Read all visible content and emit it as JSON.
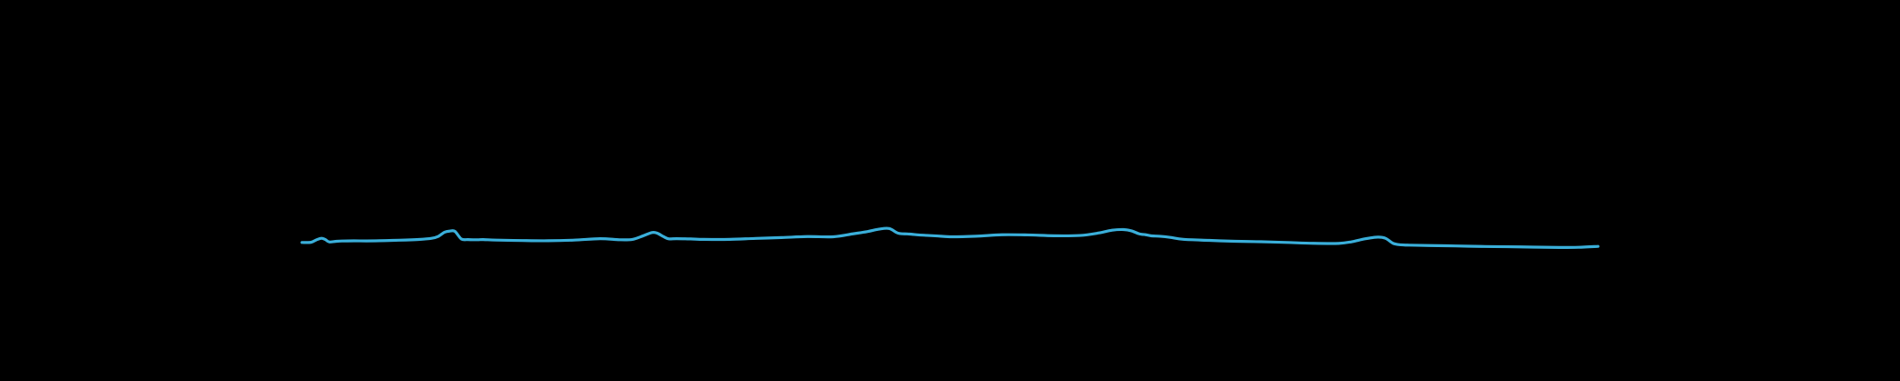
{
  "colors": {
    "background": "#000000",
    "trace": "#3AAFDA",
    "lead_in": "#5E8FA3"
  },
  "chart_data": {
    "type": "line",
    "title": "",
    "xlabel": "",
    "ylabel": "",
    "grid": false,
    "legend": "none",
    "xlim": [
      0,
      100
    ],
    "ylim": [
      0,
      100
    ],
    "series": [
      {
        "x": [
          0,
          0.7,
          1.1,
          1.5,
          1.8,
          2.1,
          2.6,
          3.1,
          4.0,
          5.0,
          6.0,
          7.0,
          8.0,
          9.0,
          10.0,
          10.5,
          11.0,
          11.4,
          11.8,
          12.3,
          12.8,
          13.2,
          13.6,
          14.0,
          15.0,
          17.0,
          19.0,
          21.0,
          23.0,
          24.5,
          25.5,
          26.3,
          27.0,
          27.4,
          27.9,
          28.3,
          28.9,
          30.0,
          31.0,
          33.0,
          35.0,
          37.0,
          39.0,
          41.0,
          42.5,
          43.6,
          44.5,
          45.3,
          46.0,
          46.7,
          47.1,
          47.6,
          48.2,
          49.0,
          50.0,
          52.0,
          54.0,
          56.0,
          58.0,
          60.0,
          61.5,
          62.5,
          63.4,
          64.0,
          64.6,
          65.1,
          65.5,
          66.2,
          67.0,
          68.0,
          70.0,
          72.0,
          74.0,
          76.0,
          78.0,
          80.0,
          81.0,
          82.0,
          83.0,
          83.6,
          84.2,
          84.8,
          85.3,
          85.9,
          87.0,
          89.0,
          91.0,
          93.0,
          95.0,
          97.0,
          98.5,
          100.0
        ],
        "y": [
          17.0,
          17.2,
          19.8,
          21.6,
          20.2,
          17.6,
          18.2,
          18.6,
          18.8,
          18.7,
          18.9,
          19.3,
          19.7,
          20.3,
          21.6,
          23.6,
          28.3,
          29.5,
          29.2,
          20.8,
          20.2,
          20.0,
          20.0,
          20.2,
          19.6,
          19.1,
          18.9,
          19.6,
          21.2,
          20.0,
          20.4,
          24.2,
          27.9,
          27.3,
          23.4,
          21.0,
          21.2,
          20.9,
          20.4,
          20.4,
          21.5,
          22.4,
          23.5,
          23.3,
          26.5,
          28.9,
          31.6,
          32.4,
          27.2,
          26.4,
          26.0,
          25.3,
          24.8,
          24.2,
          23.3,
          23.9,
          25.5,
          25.3,
          24.4,
          24.7,
          27.5,
          30.5,
          31.2,
          29.8,
          26.5,
          25.5,
          24.4,
          23.8,
          22.6,
          20.5,
          19.3,
          18.3,
          17.8,
          17.0,
          16.1,
          16.0,
          17.8,
          21.0,
          22.9,
          21.6,
          16.0,
          14.4,
          14.1,
          13.9,
          13.6,
          13.2,
          12.6,
          12.3,
          11.9,
          11.5,
          11.7,
          12.7
        ]
      }
    ]
  }
}
